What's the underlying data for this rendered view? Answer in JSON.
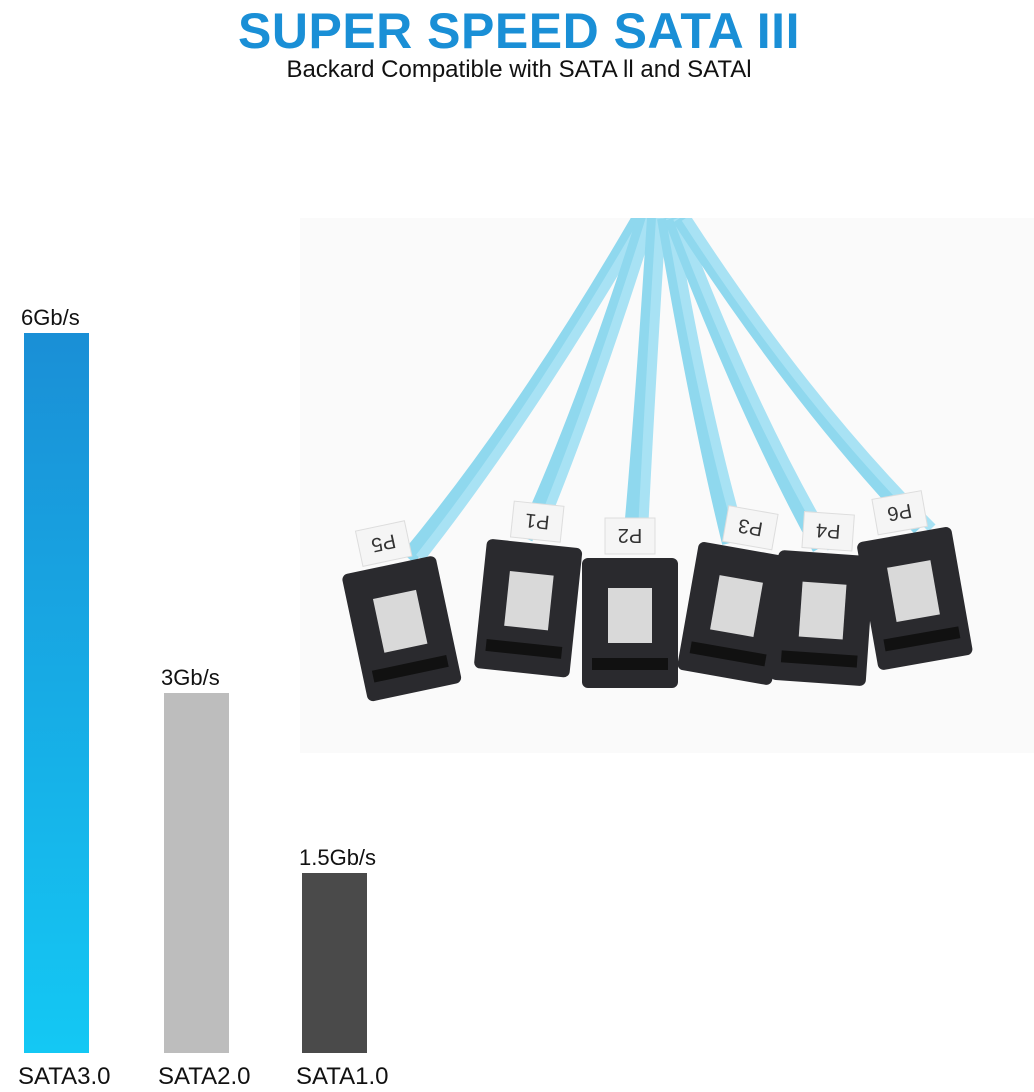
{
  "header": {
    "title": "SUPER SPEED SATA III",
    "subtitle": "Backard Compatible with SATA ll and SATAl"
  },
  "photo": {
    "port_labels": [
      "P5",
      "P1",
      "P2",
      "P3",
      "P4",
      "P6"
    ],
    "cable_color": "#8fd8ee",
    "connector_color": "#2a2a2e"
  },
  "chart_data": {
    "type": "bar",
    "categories": [
      "SATA3.0",
      "SATA2.0",
      "SATA1.0"
    ],
    "values": [
      6,
      3,
      1.5
    ],
    "data_labels": [
      "6Gb/s",
      "3Gb/s",
      "1.5Gb/s"
    ],
    "colors": [
      "#1a8fd6",
      "#bdbdbd",
      "#4a4a4a"
    ],
    "gradient_end": "#14c8f4",
    "ylim": [
      0,
      6
    ],
    "grid": false
  }
}
